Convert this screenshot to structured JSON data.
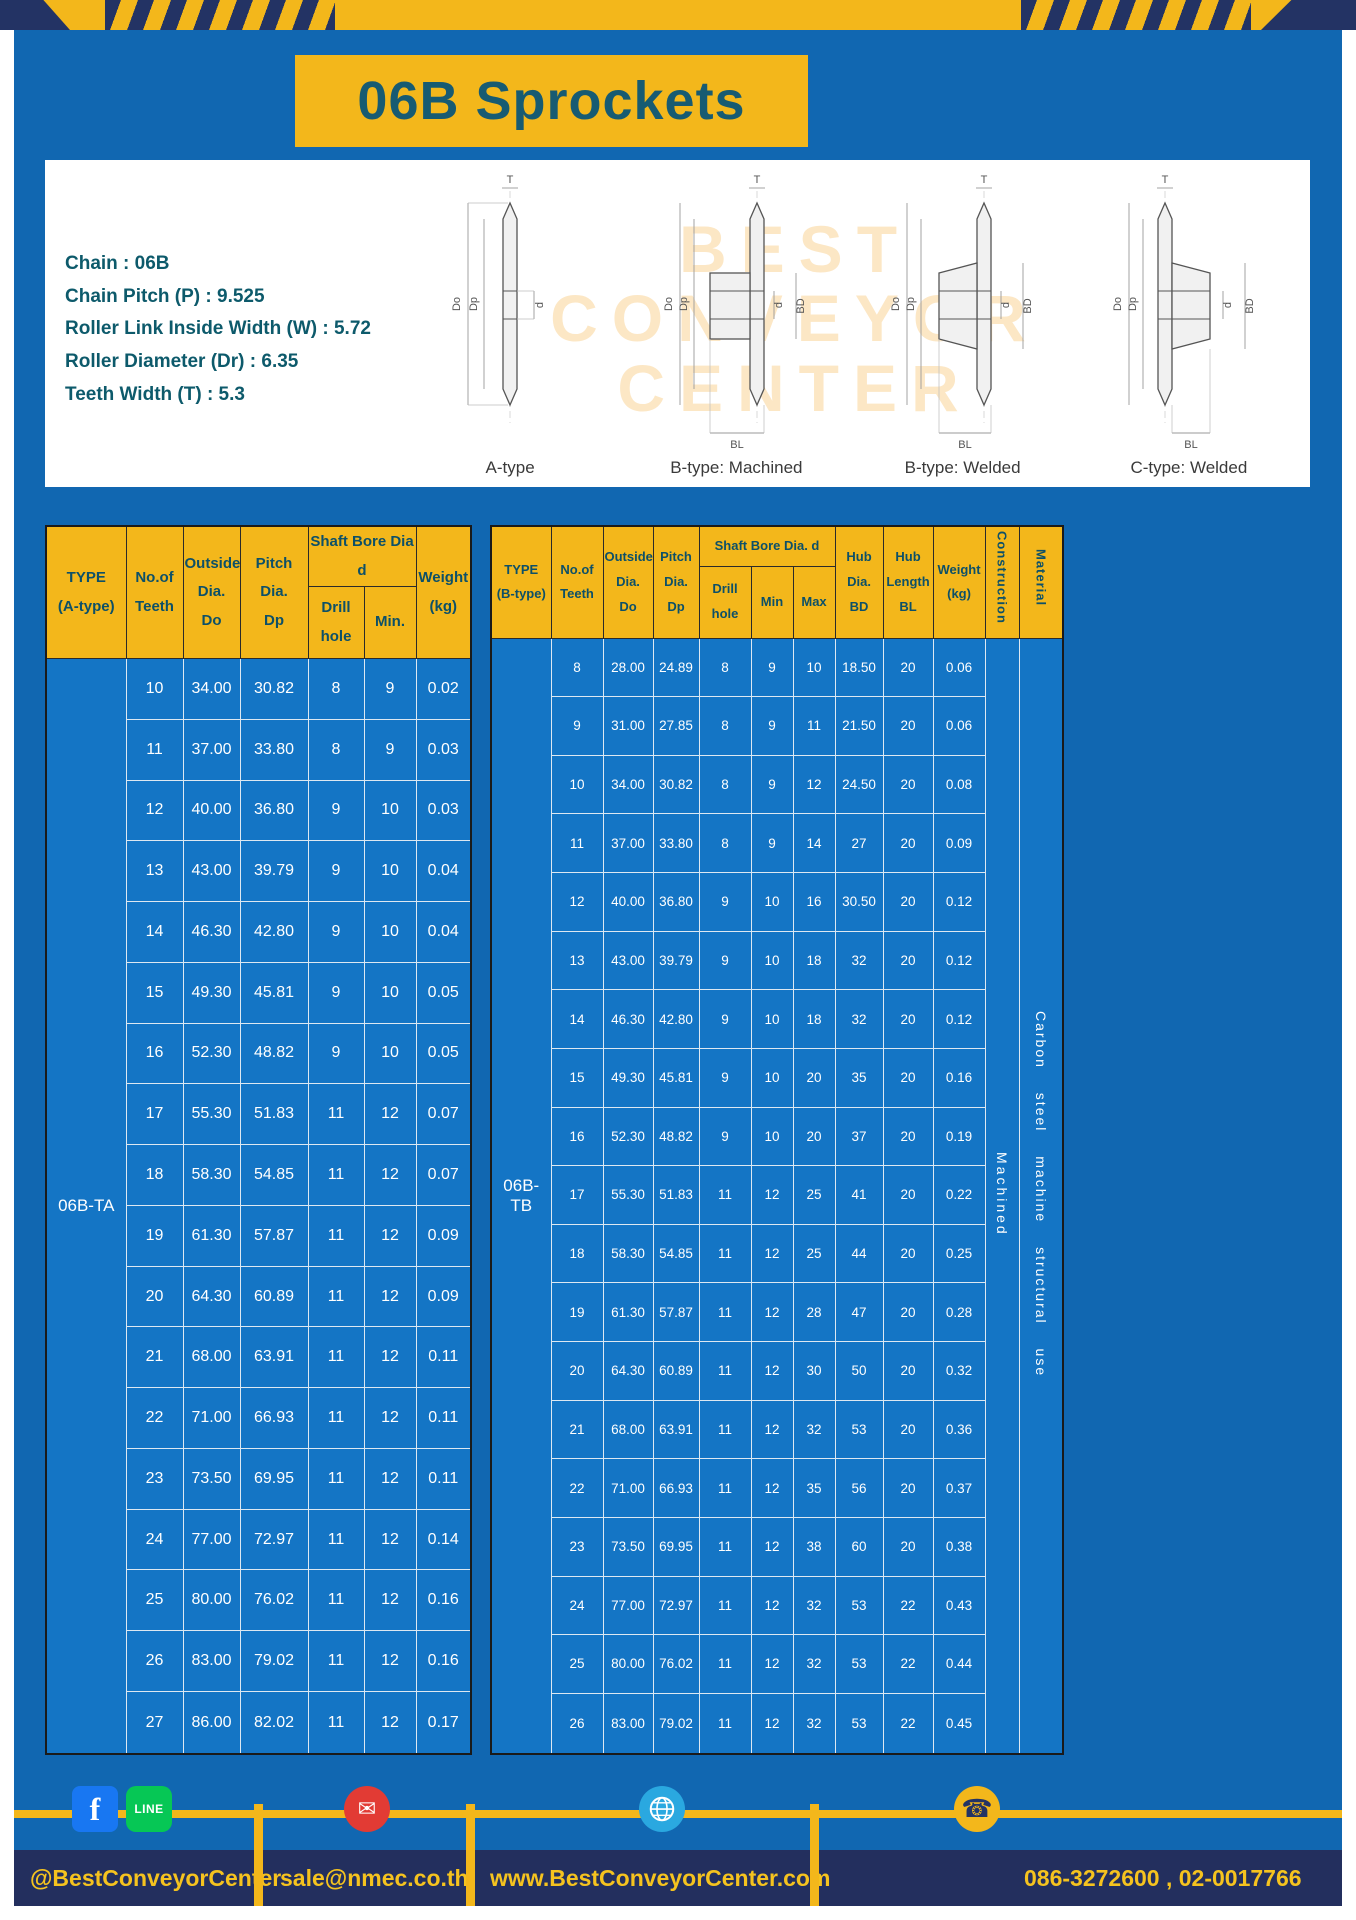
{
  "title": "06B Sprockets",
  "specs": [
    "Chain : 06B",
    "Chain Pitch (P) : 9.525",
    "Roller Link Inside Width (W) : 5.72",
    "Roller Diameter (Dr) : 6.35",
    "Teeth Width (T) : 5.3"
  ],
  "diagram": {
    "watermark": [
      "BEST",
      "CONVEYOR",
      "CENTER"
    ],
    "captions": [
      "A-type",
      "B-type: Machined",
      "B-type: Welded",
      "C-type: Welded"
    ],
    "dims": {
      "T": "T",
      "Do": "Do",
      "Dp": "Dp",
      "d": "d",
      "BD": "BD",
      "BL": "BL"
    }
  },
  "table_a": {
    "headers": {
      "type": "TYPE\n(A-type)",
      "teeth": "No.of\nTeeth",
      "outside": "Outside\nDia.\nDo",
      "pitch": "Pitch Dia.\nDp",
      "bore_group": "Shaft Bore Dia d",
      "drill": "Drill hole",
      "min": "Min.",
      "weight": "Weight\n(kg)"
    },
    "type_value": "06B-TA",
    "rows": [
      [
        "10",
        "34.00",
        "30.82",
        "8",
        "9",
        "0.02"
      ],
      [
        "11",
        "37.00",
        "33.80",
        "8",
        "9",
        "0.03"
      ],
      [
        "12",
        "40.00",
        "36.80",
        "9",
        "10",
        "0.03"
      ],
      [
        "13",
        "43.00",
        "39.79",
        "9",
        "10",
        "0.04"
      ],
      [
        "14",
        "46.30",
        "42.80",
        "9",
        "10",
        "0.04"
      ],
      [
        "15",
        "49.30",
        "45.81",
        "9",
        "10",
        "0.05"
      ],
      [
        "16",
        "52.30",
        "48.82",
        "9",
        "10",
        "0.05"
      ],
      [
        "17",
        "55.30",
        "51.83",
        "11",
        "12",
        "0.07"
      ],
      [
        "18",
        "58.30",
        "54.85",
        "11",
        "12",
        "0.07"
      ],
      [
        "19",
        "61.30",
        "57.87",
        "11",
        "12",
        "0.09"
      ],
      [
        "20",
        "64.30",
        "60.89",
        "11",
        "12",
        "0.09"
      ],
      [
        "21",
        "68.00",
        "63.91",
        "11",
        "12",
        "0.11"
      ],
      [
        "22",
        "71.00",
        "66.93",
        "11",
        "12",
        "0.11"
      ],
      [
        "23",
        "73.50",
        "69.95",
        "11",
        "12",
        "0.11"
      ],
      [
        "24",
        "77.00",
        "72.97",
        "11",
        "12",
        "0.14"
      ],
      [
        "25",
        "80.00",
        "76.02",
        "11",
        "12",
        "0.16"
      ],
      [
        "26",
        "83.00",
        "79.02",
        "11",
        "12",
        "0.16"
      ],
      [
        "27",
        "86.00",
        "82.02",
        "11",
        "12",
        "0.17"
      ]
    ]
  },
  "table_b": {
    "headers": {
      "type": "TYPE\n(B-type)",
      "teeth": "No.of\nTeeth",
      "outside": "Outside\nDia.\nDo",
      "pitch": "Pitch\nDia.\nDp",
      "bore_group": "Shaft Bore Dia.  d",
      "drill": "Drill hole",
      "min": "Min",
      "max": "Max",
      "hub_dia": "Hub\nDia.\nBD",
      "hub_len": "Hub\nLength\nBL",
      "weight": "Weight\n(kg)",
      "construction": "Construction",
      "material": "Material"
    },
    "type_value": "06B-TB",
    "construction_value": "Machined",
    "material_value": "Carbon steel machine structural use",
    "rows": [
      [
        "8",
        "28.00",
        "24.89",
        "8",
        "9",
        "10",
        "18.50",
        "20",
        "0.06"
      ],
      [
        "9",
        "31.00",
        "27.85",
        "8",
        "9",
        "11",
        "21.50",
        "20",
        "0.06"
      ],
      [
        "10",
        "34.00",
        "30.82",
        "8",
        "9",
        "12",
        "24.50",
        "20",
        "0.08"
      ],
      [
        "11",
        "37.00",
        "33.80",
        "8",
        "9",
        "14",
        "27",
        "20",
        "0.09"
      ],
      [
        "12",
        "40.00",
        "36.80",
        "9",
        "10",
        "16",
        "30.50",
        "20",
        "0.12"
      ],
      [
        "13",
        "43.00",
        "39.79",
        "9",
        "10",
        "18",
        "32",
        "20",
        "0.12"
      ],
      [
        "14",
        "46.30",
        "42.80",
        "9",
        "10",
        "18",
        "32",
        "20",
        "0.12"
      ],
      [
        "15",
        "49.30",
        "45.81",
        "9",
        "10",
        "20",
        "35",
        "20",
        "0.16"
      ],
      [
        "16",
        "52.30",
        "48.82",
        "9",
        "10",
        "20",
        "37",
        "20",
        "0.19"
      ],
      [
        "17",
        "55.30",
        "51.83",
        "11",
        "12",
        "25",
        "41",
        "20",
        "0.22"
      ],
      [
        "18",
        "58.30",
        "54.85",
        "11",
        "12",
        "25",
        "44",
        "20",
        "0.25"
      ],
      [
        "19",
        "61.30",
        "57.87",
        "11",
        "12",
        "28",
        "47",
        "20",
        "0.28"
      ],
      [
        "20",
        "64.30",
        "60.89",
        "11",
        "12",
        "30",
        "50",
        "20",
        "0.32"
      ],
      [
        "21",
        "68.00",
        "63.91",
        "11",
        "12",
        "32",
        "53",
        "20",
        "0.36"
      ],
      [
        "22",
        "71.00",
        "66.93",
        "11",
        "12",
        "35",
        "56",
        "20",
        "0.37"
      ],
      [
        "23",
        "73.50",
        "69.95",
        "11",
        "12",
        "38",
        "60",
        "20",
        "0.38"
      ],
      [
        "24",
        "77.00",
        "72.97",
        "11",
        "12",
        "32",
        "53",
        "22",
        "0.43"
      ],
      [
        "25",
        "80.00",
        "76.02",
        "11",
        "12",
        "32",
        "53",
        "22",
        "0.44"
      ],
      [
        "26",
        "83.00",
        "79.02",
        "11",
        "12",
        "32",
        "53",
        "22",
        "0.45"
      ]
    ]
  },
  "footer": {
    "social": "@BestConveyorCenter",
    "email": "sale@nmec.co.th",
    "website": "www.BestConveyorCenter.com",
    "phone": "086-3272600 , 02-0017766",
    "icons": {
      "facebook": "f",
      "line": "LINE",
      "mail": "✉",
      "phone": "☎"
    }
  }
}
